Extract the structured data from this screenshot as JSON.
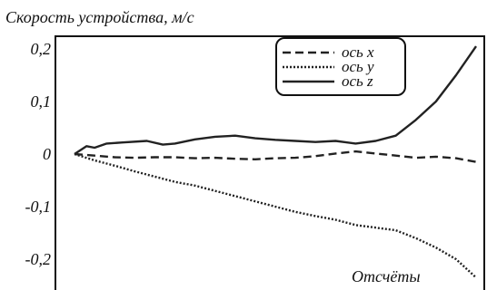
{
  "chart_data": {
    "type": "line",
    "ylabel": "Скорость устройства, м/с",
    "xlabel": "Отсчёты",
    "ylim": [
      -0.235,
      0.215
    ],
    "xlim": [
      0,
      100
    ],
    "yticks": [
      {
        "value": 0.2,
        "label": "0,2"
      },
      {
        "value": 0.1,
        "label": "0,1"
      },
      {
        "value": 0,
        "label": "0"
      },
      {
        "value": -0.1,
        "label": "-0,1"
      },
      {
        "value": -0.2,
        "label": "-0,2"
      }
    ],
    "grid": false,
    "legend_position": "top-right",
    "series": [
      {
        "name": "ось x",
        "style": "dashed",
        "color": "#222222",
        "x": [
          0,
          5,
          10,
          15,
          20,
          25,
          30,
          35,
          40,
          45,
          50,
          55,
          60,
          65,
          70,
          75,
          80,
          85,
          90,
          95,
          100
        ],
        "y": [
          0.0,
          -0.003,
          -0.006,
          -0.007,
          -0.006,
          -0.006,
          -0.008,
          -0.007,
          -0.009,
          -0.01,
          -0.008,
          -0.007,
          -0.004,
          0.001,
          0.005,
          0.001,
          -0.003,
          -0.007,
          -0.005,
          -0.008,
          -0.015
        ]
      },
      {
        "name": "ось y",
        "style": "dotted",
        "color": "#222222",
        "x": [
          0,
          5,
          10,
          15,
          20,
          25,
          30,
          35,
          40,
          45,
          50,
          55,
          60,
          65,
          70,
          75,
          80,
          85,
          90,
          95,
          100
        ],
        "y": [
          0.0,
          -0.012,
          -0.022,
          -0.033,
          -0.043,
          -0.053,
          -0.06,
          -0.07,
          -0.08,
          -0.09,
          -0.1,
          -0.11,
          -0.118,
          -0.125,
          -0.135,
          -0.14,
          -0.145,
          -0.16,
          -0.178,
          -0.2,
          -0.235
        ]
      },
      {
        "name": "ось z",
        "style": "solid",
        "color": "#222222",
        "x": [
          0,
          3,
          5,
          8,
          12,
          18,
          22,
          25,
          30,
          35,
          40,
          45,
          50,
          55,
          60,
          65,
          70,
          75,
          80,
          85,
          90,
          95,
          100
        ],
        "y": [
          0.0,
          0.015,
          0.012,
          0.02,
          0.022,
          0.025,
          0.018,
          0.02,
          0.028,
          0.033,
          0.035,
          0.03,
          0.027,
          0.025,
          0.023,
          0.025,
          0.02,
          0.025,
          0.035,
          0.065,
          0.1,
          0.15,
          0.205
        ]
      }
    ]
  }
}
